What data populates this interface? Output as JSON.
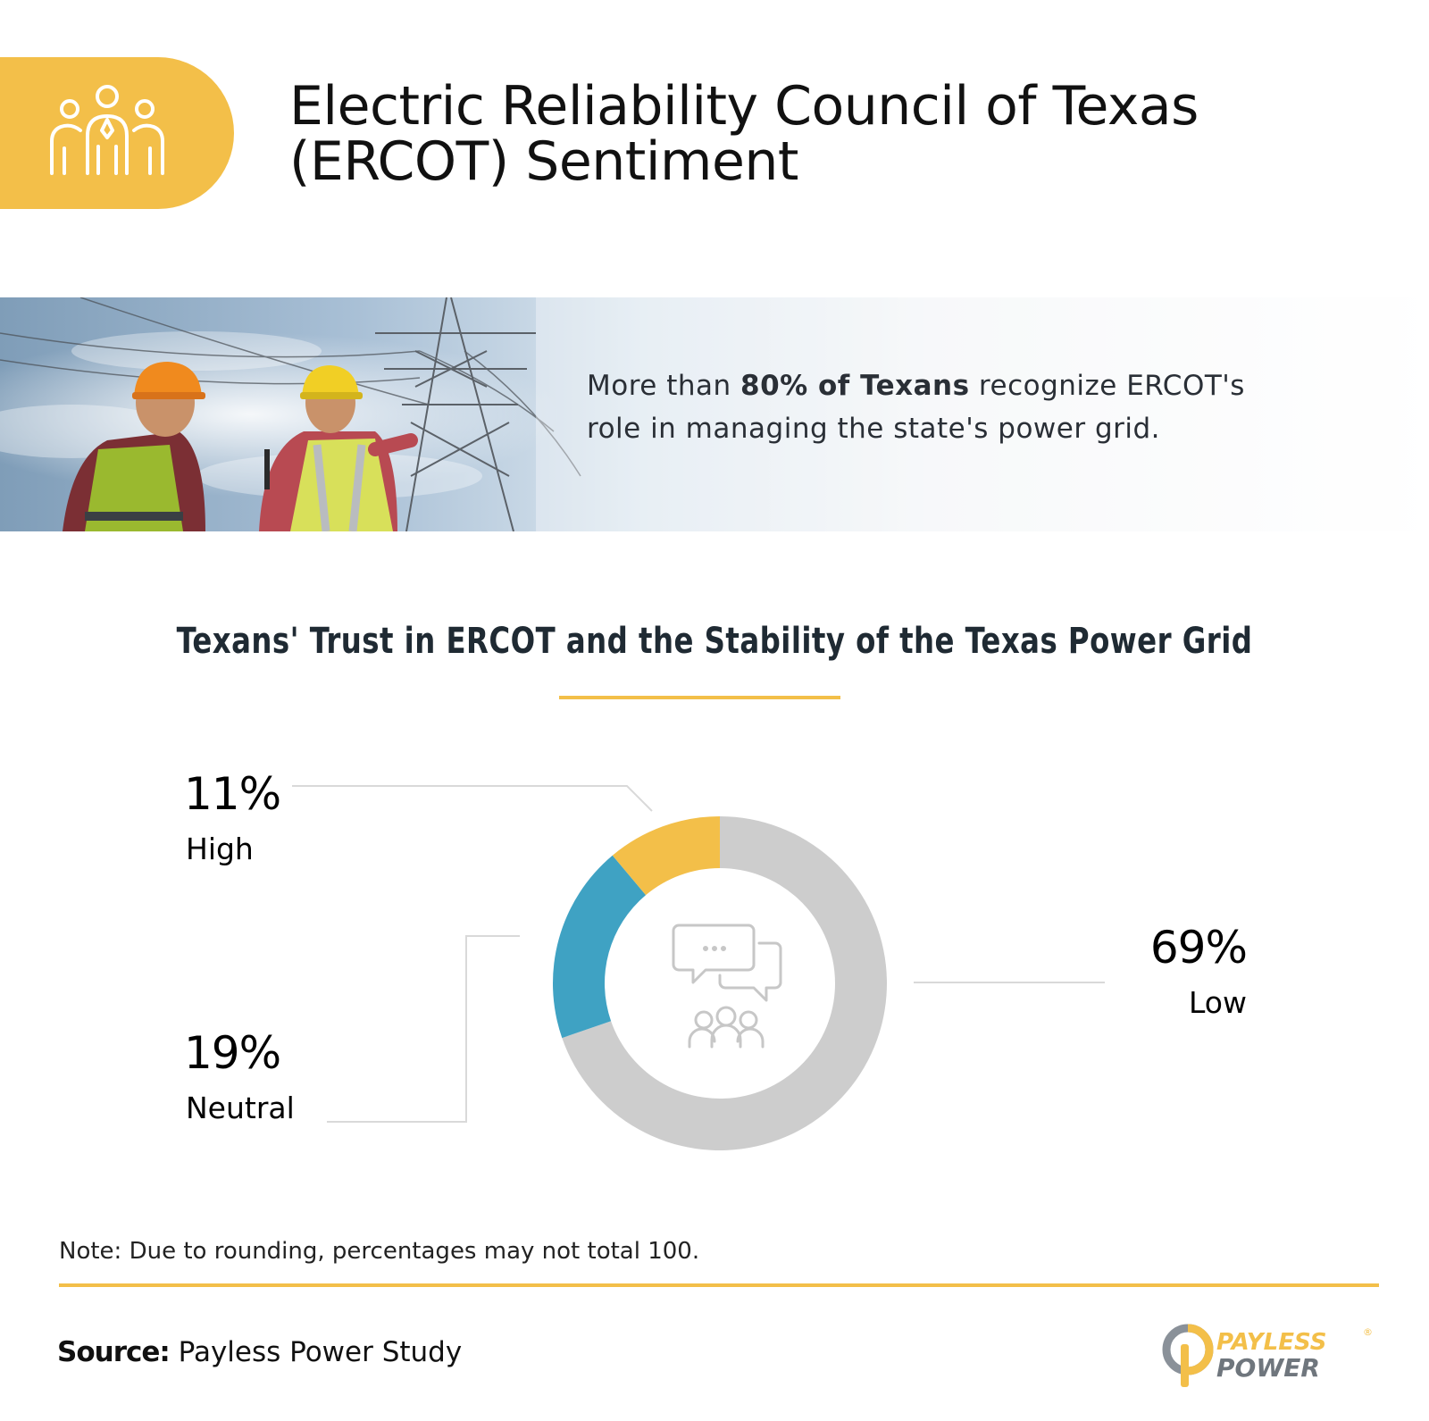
{
  "header": {
    "title_line1": "Electric Reliability Council of Texas",
    "title_line2": "(ERCOT) Sentiment",
    "icon": "team-people-icon"
  },
  "banner": {
    "text_pre": "More than ",
    "text_bold": "80% of Texans",
    "text_post": " recognize ERCOT's role in managing the state's power grid."
  },
  "chart_data": {
    "type": "pie",
    "title": "Texans' Trust in ERCOT and the Stability of the Texas Power Grid",
    "categories": [
      "High",
      "Neutral",
      "Low"
    ],
    "values": [
      11,
      19,
      69
    ],
    "value_labels": [
      "11%",
      "19%",
      "69%"
    ],
    "colors": [
      "#f3bf49",
      "#3fa2c3",
      "#cdcdcd"
    ],
    "donut": true,
    "center_icon": "chat-group-icon"
  },
  "note": "Note: Due to rounding, percentages may not total 100.",
  "source": {
    "label": "Source:",
    "text": "Payless Power Study"
  },
  "logo": {
    "line1": "PAYLESS",
    "line2": "POWER",
    "mark": "®"
  },
  "colors": {
    "accent": "#f3bf49",
    "neutral": "#3fa2c3",
    "low": "#cdcdcd",
    "text_dark": "#1f2a33"
  }
}
